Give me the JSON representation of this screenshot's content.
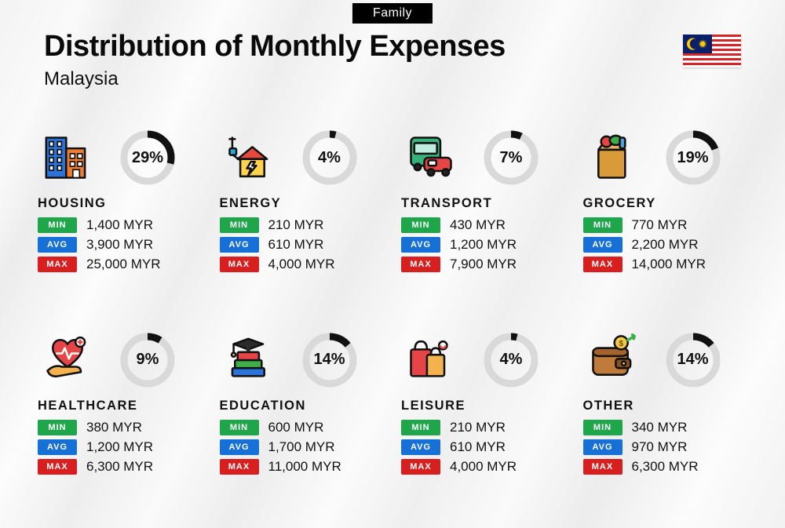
{
  "header": {
    "tag": "Family",
    "title": "Distribution of Monthly Expenses",
    "subtitle": "Malaysia"
  },
  "flag": {
    "stripes": [
      "#d7232a",
      "#ffffff"
    ],
    "canton_bg": "#0a1f6a",
    "moon_star_color": "#ffcc00"
  },
  "labels": {
    "min": "MIN",
    "avg": "AVG",
    "max": "MAX",
    "currency": "MYR"
  },
  "style": {
    "pill_colors": {
      "min": "#1fa54a",
      "avg": "#1670d6",
      "max": "#d81f1f"
    },
    "ring_bg": "#d9d9d9",
    "ring_fg": "#111111",
    "ring_stroke_width": 9,
    "title_fontsize": 38,
    "subtitle_fontsize": 24,
    "pct_fontsize": 20,
    "background_gradient": [
      "#f3f3f3",
      "#fafafa",
      "#ececec",
      "#fcfcfc"
    ]
  },
  "categories": [
    {
      "key": "housing",
      "name": "HOUSING",
      "pct": 29,
      "min": "1,400",
      "avg": "3,900",
      "max": "25,000",
      "icon": "building-icon"
    },
    {
      "key": "energy",
      "name": "ENERGY",
      "pct": 4,
      "min": "210",
      "avg": "610",
      "max": "4,000",
      "icon": "energy-house-icon"
    },
    {
      "key": "transport",
      "name": "TRANSPORT",
      "pct": 7,
      "min": "430",
      "avg": "1,200",
      "max": "7,900",
      "icon": "bus-car-icon"
    },
    {
      "key": "grocery",
      "name": "GROCERY",
      "pct": 19,
      "min": "770",
      "avg": "2,200",
      "max": "14,000",
      "icon": "grocery-bag-icon"
    },
    {
      "key": "healthcare",
      "name": "HEALTHCARE",
      "pct": 9,
      "min": "380",
      "avg": "1,200",
      "max": "6,300",
      "icon": "heart-hand-icon"
    },
    {
      "key": "education",
      "name": "EDUCATION",
      "pct": 14,
      "min": "600",
      "avg": "1,700",
      "max": "11,000",
      "icon": "books-grad-icon"
    },
    {
      "key": "leisure",
      "name": "LEISURE",
      "pct": 4,
      "min": "210",
      "avg": "610",
      "max": "4,000",
      "icon": "shopping-bags-icon"
    },
    {
      "key": "other",
      "name": "OTHER",
      "pct": 14,
      "min": "340",
      "avg": "970",
      "max": "6,300",
      "icon": "wallet-icon"
    }
  ],
  "icons_palette": {
    "building-icon": {
      "a": "#2b72d9",
      "b": "#ef7d2f",
      "c": "#2b2b2b"
    },
    "energy-house-icon": {
      "a": "#ffd34d",
      "b": "#2aa8e0",
      "c": "#e9483f"
    },
    "bus-car-icon": {
      "a": "#34b27a",
      "b": "#e64545",
      "c": "#2b2b2b"
    },
    "grocery-bag-icon": {
      "a": "#d99a3a",
      "b": "#3fae49",
      "c": "#e64545"
    },
    "heart-hand-icon": {
      "a": "#e64545",
      "b": "#f3b24e",
      "c": "#ffffff"
    },
    "books-grad-icon": {
      "a": "#2b72d9",
      "b": "#3fae49",
      "c": "#e64545",
      "d": "#2b2b2b"
    },
    "shopping-bags-icon": {
      "a": "#e64545",
      "b": "#f3b24e",
      "c": "#2b2b2b"
    },
    "wallet-icon": {
      "a": "#c07a3a",
      "b": "#3fae49",
      "c": "#f3c94b"
    }
  }
}
